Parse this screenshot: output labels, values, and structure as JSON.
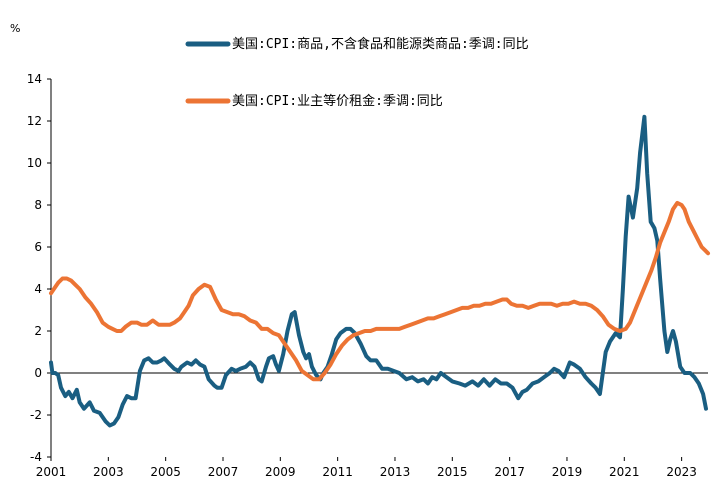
{
  "chart_data": {
    "type": "line",
    "unit": "%",
    "xlim": [
      2001,
      2023.92
    ],
    "ylim": [
      -4,
      14
    ],
    "x_ticks": [
      "2001",
      "2003",
      "2005",
      "2007",
      "2009",
      "2011",
      "2013",
      "2015",
      "2017",
      "2019",
      "2021",
      "2023"
    ],
    "y_ticks": [
      "14",
      "12",
      "10",
      "8",
      "6",
      "4",
      "2",
      "0",
      "-2",
      "-4"
    ],
    "grid": false,
    "legend_position": "top",
    "series": [
      {
        "name": "美国:CPI:商品,不含食品和能源类商品:季调:同比",
        "color": "#1a5e82",
        "points": [
          [
            2001.0,
            0.5
          ],
          [
            2001.05,
            0.0
          ],
          [
            2001.15,
            0.0
          ],
          [
            2001.25,
            -0.1
          ],
          [
            2001.35,
            -0.7
          ],
          [
            2001.5,
            -1.1
          ],
          [
            2001.62,
            -0.9
          ],
          [
            2001.75,
            -1.2
          ],
          [
            2001.9,
            -0.8
          ],
          [
            2002.0,
            -1.4
          ],
          [
            2002.15,
            -1.7
          ],
          [
            2002.35,
            -1.4
          ],
          [
            2002.5,
            -1.8
          ],
          [
            2002.7,
            -1.9
          ],
          [
            2002.9,
            -2.3
          ],
          [
            2003.05,
            -2.5
          ],
          [
            2003.2,
            -2.4
          ],
          [
            2003.35,
            -2.1
          ],
          [
            2003.5,
            -1.5
          ],
          [
            2003.65,
            -1.1
          ],
          [
            2003.8,
            -1.2
          ],
          [
            2003.95,
            -1.2
          ],
          [
            2004.1,
            0.1
          ],
          [
            2004.25,
            0.6
          ],
          [
            2004.4,
            0.7
          ],
          [
            2004.55,
            0.5
          ],
          [
            2004.7,
            0.5
          ],
          [
            2004.85,
            0.6
          ],
          [
            2004.95,
            0.7
          ],
          [
            2005.15,
            0.4
          ],
          [
            2005.3,
            0.2
          ],
          [
            2005.45,
            0.1
          ],
          [
            2005.55,
            0.3
          ],
          [
            2005.75,
            0.5
          ],
          [
            2005.9,
            0.4
          ],
          [
            2006.05,
            0.6
          ],
          [
            2006.2,
            0.4
          ],
          [
            2006.35,
            0.3
          ],
          [
            2006.5,
            -0.3
          ],
          [
            2006.7,
            -0.6
          ],
          [
            2006.8,
            -0.7
          ],
          [
            2006.95,
            -0.7
          ],
          [
            2007.1,
            -0.1
          ],
          [
            2007.3,
            0.2
          ],
          [
            2007.45,
            0.1
          ],
          [
            2007.6,
            0.2
          ],
          [
            2007.8,
            0.3
          ],
          [
            2007.95,
            0.5
          ],
          [
            2008.1,
            0.3
          ],
          [
            2008.25,
            -0.3
          ],
          [
            2008.35,
            -0.4
          ],
          [
            2008.5,
            0.3
          ],
          [
            2008.6,
            0.7
          ],
          [
            2008.75,
            0.8
          ],
          [
            2008.85,
            0.4
          ],
          [
            2008.95,
            0.1
          ],
          [
            2009.1,
            0.9
          ],
          [
            2009.25,
            2.0
          ],
          [
            2009.4,
            2.8
          ],
          [
            2009.5,
            2.9
          ],
          [
            2009.65,
            1.8
          ],
          [
            2009.8,
            1.0
          ],
          [
            2009.9,
            0.7
          ],
          [
            2010.0,
            0.9
          ],
          [
            2010.1,
            0.3
          ],
          [
            2010.25,
            -0.1
          ],
          [
            2010.4,
            -0.3
          ],
          [
            2010.5,
            0.0
          ],
          [
            2010.65,
            0.3
          ],
          [
            2010.8,
            0.9
          ],
          [
            2010.95,
            1.6
          ],
          [
            2011.1,
            1.9
          ],
          [
            2011.3,
            2.1
          ],
          [
            2011.45,
            2.1
          ],
          [
            2011.6,
            1.9
          ],
          [
            2011.8,
            1.4
          ],
          [
            2012.0,
            0.8
          ],
          [
            2012.15,
            0.6
          ],
          [
            2012.35,
            0.6
          ],
          [
            2012.55,
            0.2
          ],
          [
            2012.75,
            0.2
          ],
          [
            2012.95,
            0.1
          ],
          [
            2013.15,
            0.0
          ],
          [
            2013.4,
            -0.3
          ],
          [
            2013.6,
            -0.2
          ],
          [
            2013.8,
            -0.4
          ],
          [
            2014.0,
            -0.3
          ],
          [
            2014.15,
            -0.5
          ],
          [
            2014.3,
            -0.2
          ],
          [
            2014.45,
            -0.3
          ],
          [
            2014.6,
            0.0
          ],
          [
            2014.8,
            -0.2
          ],
          [
            2015.0,
            -0.4
          ],
          [
            2015.25,
            -0.5
          ],
          [
            2015.45,
            -0.6
          ],
          [
            2015.7,
            -0.4
          ],
          [
            2015.9,
            -0.6
          ],
          [
            2016.1,
            -0.3
          ],
          [
            2016.3,
            -0.6
          ],
          [
            2016.5,
            -0.3
          ],
          [
            2016.7,
            -0.5
          ],
          [
            2016.9,
            -0.5
          ],
          [
            2017.1,
            -0.7
          ],
          [
            2017.3,
            -1.2
          ],
          [
            2017.45,
            -0.9
          ],
          [
            2017.6,
            -0.8
          ],
          [
            2017.8,
            -0.5
          ],
          [
            2018.0,
            -0.4
          ],
          [
            2018.2,
            -0.2
          ],
          [
            2018.4,
            0.0
          ],
          [
            2018.55,
            0.2
          ],
          [
            2018.7,
            0.1
          ],
          [
            2018.9,
            -0.2
          ],
          [
            2019.1,
            0.5
          ],
          [
            2019.25,
            0.4
          ],
          [
            2019.45,
            0.2
          ],
          [
            2019.65,
            -0.2
          ],
          [
            2019.85,
            -0.5
          ],
          [
            2020.0,
            -0.7
          ],
          [
            2020.15,
            -1.0
          ],
          [
            2020.35,
            1.0
          ],
          [
            2020.5,
            1.5
          ],
          [
            2020.7,
            1.9
          ],
          [
            2020.85,
            1.7
          ],
          [
            2020.95,
            4.0
          ],
          [
            2021.05,
            6.5
          ],
          [
            2021.15,
            8.4
          ],
          [
            2021.3,
            7.4
          ],
          [
            2021.45,
            8.8
          ],
          [
            2021.55,
            10.5
          ],
          [
            2021.7,
            12.2
          ],
          [
            2021.8,
            9.5
          ],
          [
            2021.92,
            7.2
          ],
          [
            2022.05,
            6.9
          ],
          [
            2022.15,
            6.3
          ],
          [
            2022.25,
            4.5
          ],
          [
            2022.4,
            2.0
          ],
          [
            2022.5,
            1.0
          ],
          [
            2022.6,
            1.6
          ],
          [
            2022.7,
            2.0
          ],
          [
            2022.8,
            1.5
          ],
          [
            2022.95,
            0.3
          ],
          [
            2023.1,
            0.0
          ],
          [
            2023.3,
            0.0
          ],
          [
            2023.45,
            -0.2
          ],
          [
            2023.6,
            -0.5
          ],
          [
            2023.75,
            -1.0
          ],
          [
            2023.85,
            -1.7
          ]
        ]
      },
      {
        "name": "美国:CPI:业主等价租金:季调:同比",
        "color": "#ec7434",
        "points": [
          [
            2001.0,
            3.8
          ],
          [
            2001.1,
            4.0
          ],
          [
            2001.25,
            4.3
          ],
          [
            2001.4,
            4.5
          ],
          [
            2001.55,
            4.5
          ],
          [
            2001.7,
            4.4
          ],
          [
            2001.85,
            4.2
          ],
          [
            2002.0,
            4.0
          ],
          [
            2002.2,
            3.6
          ],
          [
            2002.4,
            3.3
          ],
          [
            2002.6,
            2.9
          ],
          [
            2002.8,
            2.4
          ],
          [
            2003.0,
            2.2
          ],
          [
            2003.15,
            2.1
          ],
          [
            2003.3,
            2.0
          ],
          [
            2003.45,
            2.0
          ],
          [
            2003.6,
            2.2
          ],
          [
            2003.8,
            2.4
          ],
          [
            2004.0,
            2.4
          ],
          [
            2004.15,
            2.3
          ],
          [
            2004.35,
            2.3
          ],
          [
            2004.55,
            2.5
          ],
          [
            2004.75,
            2.3
          ],
          [
            2004.95,
            2.3
          ],
          [
            2005.15,
            2.3
          ],
          [
            2005.3,
            2.4
          ],
          [
            2005.5,
            2.6
          ],
          [
            2005.65,
            2.9
          ],
          [
            2005.8,
            3.2
          ],
          [
            2005.95,
            3.7
          ],
          [
            2006.15,
            4.0
          ],
          [
            2006.35,
            4.2
          ],
          [
            2006.55,
            4.1
          ],
          [
            2006.75,
            3.5
          ],
          [
            2006.95,
            3.0
          ],
          [
            2007.15,
            2.9
          ],
          [
            2007.35,
            2.8
          ],
          [
            2007.55,
            2.8
          ],
          [
            2007.75,
            2.7
          ],
          [
            2007.95,
            2.5
          ],
          [
            2008.15,
            2.4
          ],
          [
            2008.35,
            2.1
          ],
          [
            2008.55,
            2.1
          ],
          [
            2008.75,
            1.9
          ],
          [
            2008.95,
            1.8
          ],
          [
            2009.15,
            1.4
          ],
          [
            2009.35,
            1.0
          ],
          [
            2009.55,
            0.6
          ],
          [
            2009.75,
            0.1
          ],
          [
            2009.95,
            -0.1
          ],
          [
            2010.15,
            -0.3
          ],
          [
            2010.35,
            -0.3
          ],
          [
            2010.55,
            0.0
          ],
          [
            2010.75,
            0.4
          ],
          [
            2010.95,
            0.9
          ],
          [
            2011.15,
            1.3
          ],
          [
            2011.35,
            1.6
          ],
          [
            2011.55,
            1.8
          ],
          [
            2011.75,
            1.9
          ],
          [
            2011.95,
            2.0
          ],
          [
            2012.15,
            2.0
          ],
          [
            2012.35,
            2.1
          ],
          [
            2012.55,
            2.1
          ],
          [
            2012.75,
            2.1
          ],
          [
            2012.95,
            2.1
          ],
          [
            2013.15,
            2.1
          ],
          [
            2013.35,
            2.2
          ],
          [
            2013.55,
            2.3
          ],
          [
            2013.75,
            2.4
          ],
          [
            2013.95,
            2.5
          ],
          [
            2014.15,
            2.6
          ],
          [
            2014.35,
            2.6
          ],
          [
            2014.55,
            2.7
          ],
          [
            2014.75,
            2.8
          ],
          [
            2014.95,
            2.9
          ],
          [
            2015.15,
            3.0
          ],
          [
            2015.35,
            3.1
          ],
          [
            2015.55,
            3.1
          ],
          [
            2015.75,
            3.2
          ],
          [
            2015.95,
            3.2
          ],
          [
            2016.15,
            3.3
          ],
          [
            2016.35,
            3.3
          ],
          [
            2016.55,
            3.4
          ],
          [
            2016.75,
            3.5
          ],
          [
            2016.9,
            3.5
          ],
          [
            2017.05,
            3.3
          ],
          [
            2017.25,
            3.2
          ],
          [
            2017.45,
            3.2
          ],
          [
            2017.65,
            3.1
          ],
          [
            2017.85,
            3.2
          ],
          [
            2018.05,
            3.3
          ],
          [
            2018.25,
            3.3
          ],
          [
            2018.45,
            3.3
          ],
          [
            2018.65,
            3.2
          ],
          [
            2018.85,
            3.3
          ],
          [
            2019.05,
            3.3
          ],
          [
            2019.25,
            3.4
          ],
          [
            2019.45,
            3.3
          ],
          [
            2019.65,
            3.3
          ],
          [
            2019.85,
            3.2
          ],
          [
            2020.05,
            3.0
          ],
          [
            2020.25,
            2.7
          ],
          [
            2020.45,
            2.3
          ],
          [
            2020.65,
            2.1
          ],
          [
            2020.85,
            2.0
          ],
          [
            2021.05,
            2.1
          ],
          [
            2021.2,
            2.4
          ],
          [
            2021.35,
            2.9
          ],
          [
            2021.5,
            3.4
          ],
          [
            2021.65,
            3.9
          ],
          [
            2021.8,
            4.4
          ],
          [
            2021.95,
            4.9
          ],
          [
            2022.1,
            5.5
          ],
          [
            2022.25,
            6.2
          ],
          [
            2022.4,
            6.7
          ],
          [
            2022.55,
            7.2
          ],
          [
            2022.7,
            7.8
          ],
          [
            2022.85,
            8.1
          ],
          [
            2023.0,
            8.0
          ],
          [
            2023.1,
            7.8
          ],
          [
            2023.25,
            7.2
          ],
          [
            2023.4,
            6.8
          ],
          [
            2023.55,
            6.4
          ],
          [
            2023.7,
            6.0
          ],
          [
            2023.85,
            5.8
          ],
          [
            2023.92,
            5.7
          ]
        ]
      }
    ]
  }
}
